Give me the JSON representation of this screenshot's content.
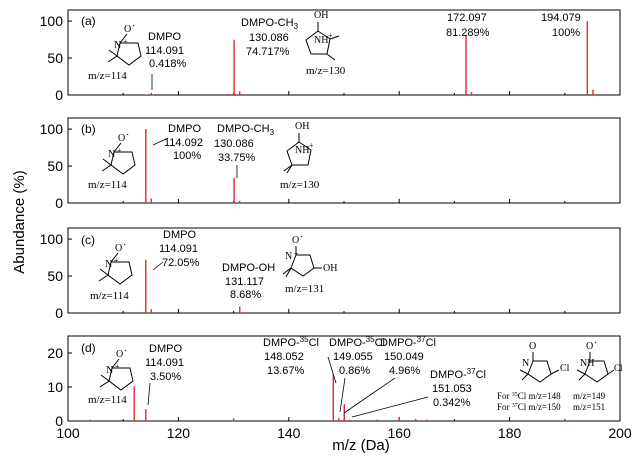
{
  "chart_data": {
    "type": "bar",
    "xlabel": "m/z (Da)",
    "ylabel": "Abundance (%)",
    "xlim": [
      100,
      200
    ],
    "x_ticks": [
      "100",
      "120",
      "140",
      "160",
      "180",
      "200"
    ],
    "grid": false,
    "bar_color": "#e8262b",
    "panels": [
      {
        "tag": "(a)",
        "ylim": [
          0,
          115
        ],
        "y_ticks": [
          "0",
          "50",
          "100"
        ],
        "peaks": [
          {
            "x": 114.091,
            "y": 0.418
          },
          {
            "x": 115.1,
            "y": 3.0
          },
          {
            "x": 129.0,
            "y": 1.5
          },
          {
            "x": 130.086,
            "y": 74.717
          },
          {
            "x": 131.1,
            "y": 5.0
          },
          {
            "x": 143.0,
            "y": 1.2
          },
          {
            "x": 151.0,
            "y": 1.0
          },
          {
            "x": 172.097,
            "y": 81.289
          },
          {
            "x": 173.1,
            "y": 4.0
          },
          {
            "x": 194.079,
            "y": 100
          },
          {
            "x": 195.1,
            "y": 7.0
          }
        ],
        "labels": [
          {
            "lines": [
              "DMPO",
              "114.091",
              "0.418%"
            ]
          },
          {
            "lines": [
              "DMPO-CH",
              "130.086",
              "74.717%"
            ],
            "sub": "3"
          },
          {
            "lines": [
              "172.097",
              "81.289%"
            ]
          },
          {
            "lines": [
              "194.079",
              "100%"
            ]
          }
        ],
        "structures": [
          {
            "text": "m/z=114",
            "atoms": [
              "O",
              "N"
            ],
            "charge": "+",
            "radical": "·"
          },
          {
            "text": "m/z=130",
            "atoms": [
              "OH",
              "NH"
            ],
            "charge": "+"
          }
        ]
      },
      {
        "tag": "(b)",
        "ylim": [
          0,
          115
        ],
        "y_ticks": [
          "0",
          "50",
          "100"
        ],
        "peaks": [
          {
            "x": 114.092,
            "y": 100
          },
          {
            "x": 115.1,
            "y": 6.0
          },
          {
            "x": 130.086,
            "y": 33.75
          },
          {
            "x": 131.1,
            "y": 3.0
          }
        ],
        "labels": [
          {
            "lines": [
              "DMPO",
              "114.092",
              "100%"
            ]
          },
          {
            "lines": [
              "DMPO-CH",
              "130.086",
              "33.75%"
            ],
            "sub": "3"
          }
        ],
        "structures": [
          {
            "text": "m/z=114",
            "atoms": [
              "O",
              "N"
            ],
            "charge": "+",
            "radical": "·"
          },
          {
            "text": "m/z=130",
            "atoms": [
              "OH",
              "NH"
            ],
            "charge": "+"
          }
        ]
      },
      {
        "tag": "(c)",
        "ylim": [
          0,
          115
        ],
        "y_ticks": [
          "0",
          "50",
          "100"
        ],
        "peaks": [
          {
            "x": 104.0,
            "y": 1.0
          },
          {
            "x": 114.091,
            "y": 72.05
          },
          {
            "x": 115.1,
            "y": 5.0
          },
          {
            "x": 131.117,
            "y": 8.68
          },
          {
            "x": 132.1,
            "y": 1.0
          }
        ],
        "labels": [
          {
            "lines": [
              "DMPO",
              "114.091",
              "72.05%"
            ]
          },
          {
            "lines": [
              "DMPO-OH",
              "131.117",
              "8.68%"
            ]
          }
        ],
        "structures": [
          {
            "text": "m/z=114",
            "atoms": [
              "O",
              "N"
            ],
            "charge": "+",
            "radical": "·"
          },
          {
            "text": "m/z=131",
            "atoms": [
              "O",
              "N",
              "OH"
            ],
            "charge": "+",
            "radical": "·"
          }
        ]
      },
      {
        "tag": "(d)",
        "ylim": [
          0,
          25
        ],
        "y_ticks": [
          "0",
          "10",
          "20"
        ],
        "peaks": [
          {
            "x": 104.0,
            "y": 0.4
          },
          {
            "x": 112.0,
            "y": 10.2
          },
          {
            "x": 114.091,
            "y": 3.5
          },
          {
            "x": 130.0,
            "y": 0.8
          },
          {
            "x": 148.052,
            "y": 13.67
          },
          {
            "x": 149.055,
            "y": 0.86
          },
          {
            "x": 150.049,
            "y": 4.96
          },
          {
            "x": 151.053,
            "y": 0.342
          },
          {
            "x": 152.0,
            "y": 0.3
          },
          {
            "x": 156.0,
            "y": 0.4
          },
          {
            "x": 160.0,
            "y": 1.0
          },
          {
            "x": 163.0,
            "y": 0.6
          },
          {
            "x": 165.0,
            "y": 0.4
          },
          {
            "x": 190.0,
            "y": 0.6
          }
        ],
        "labels": [
          {
            "lines": [
              "DMPO",
              "114.091",
              "3.50%"
            ]
          },
          {
            "lines": [
              "DMPO-35Cl",
              "148.052",
              "13.67%"
            ],
            "sup": "35"
          },
          {
            "lines": [
              "DMPO-35Cl",
              "149.055",
              "0.86%"
            ],
            "sup": "35"
          },
          {
            "lines": [
              "DMPO-37Cl",
              "150.049",
              "4.96%"
            ],
            "sup": "37"
          },
          {
            "lines": [
              "DMPO-37Cl",
              "151.053",
              "0.342%"
            ],
            "sup": "37"
          }
        ],
        "structures": [
          {
            "text": "m/z=114",
            "atoms": [
              "O",
              "N"
            ],
            "charge": "+",
            "radical": "·"
          },
          {
            "text": "For 35Cl m/z=148",
            "atoms": [
              "O",
              "N",
              "Cl"
            ]
          },
          {
            "text": "For 37Cl m/z=150"
          },
          {
            "text": "m/z=149",
            "atoms": [
              "O",
              "NH",
              "Cl"
            ],
            "radical": "·"
          },
          {
            "text": "m/z=151"
          }
        ]
      }
    ]
  }
}
